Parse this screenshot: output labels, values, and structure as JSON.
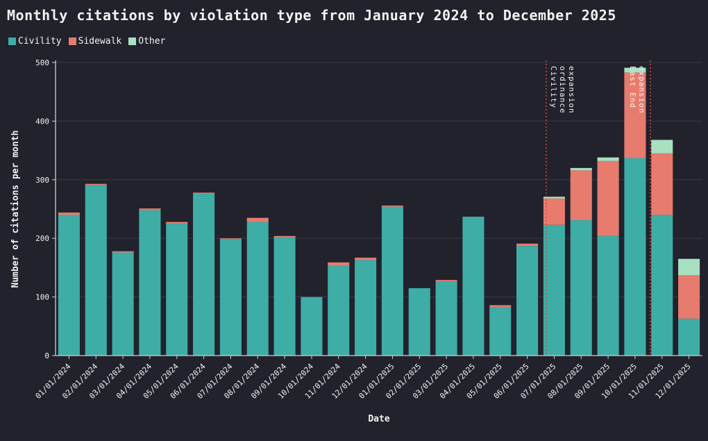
{
  "page": {
    "background": "#21222c"
  },
  "chart_data": {
    "type": "bar",
    "stacked": true,
    "title": "Monthly citations by violation type from January 2024 to December 2025",
    "xlabel": "Date",
    "ylabel": "Number of citations per month",
    "ylim": [
      0,
      500
    ],
    "yticks": [
      0,
      100,
      200,
      300,
      400,
      500
    ],
    "grid": true,
    "legend_position": "top-left",
    "colors": {
      "grid": "#3a3b45",
      "axis": "#cfcfcf",
      "text": "#f2f2f2",
      "annotation_line": "#d6443a"
    },
    "categories": [
      "01/01/2024",
      "02/01/2024",
      "03/01/2024",
      "04/01/2024",
      "05/01/2024",
      "06/01/2024",
      "07/01/2024",
      "08/01/2024",
      "09/01/2024",
      "10/01/2024",
      "11/01/2024",
      "12/01/2024",
      "01/01/2025",
      "02/01/2025",
      "03/01/2025",
      "04/01/2025",
      "05/01/2025",
      "06/01/2025",
      "07/01/2025",
      "08/01/2025",
      "09/01/2025",
      "10/01/2025",
      "11/01/2025",
      "12/01/2025"
    ],
    "series": [
      {
        "name": "Civility",
        "color": "#3dada6",
        "values": [
          240,
          291,
          176,
          248,
          225,
          276,
          199,
          228,
          202,
          100,
          153,
          163,
          254,
          115,
          126,
          237,
          83,
          187,
          223,
          231,
          204,
          337,
          240,
          63
        ]
      },
      {
        "name": "Sidewalk",
        "color": "#e77b6e",
        "values": [
          4,
          2,
          2,
          3,
          3,
          2,
          1,
          7,
          2,
          0,
          6,
          4,
          2,
          0,
          3,
          0,
          3,
          4,
          45,
          85,
          128,
          146,
          105,
          74
        ]
      },
      {
        "name": "Other",
        "color": "#a8e0c1",
        "values": [
          0,
          0,
          0,
          0,
          0,
          0,
          0,
          0,
          0,
          0,
          0,
          0,
          0,
          0,
          0,
          0,
          0,
          0,
          3,
          4,
          6,
          8,
          23,
          28
        ]
      }
    ],
    "annotations": [
      {
        "label": "Civility ordinance expansion",
        "lines": [
          "Civility",
          "ordinance",
          "expansion"
        ],
        "x_index": 17.7,
        "text_offsets": [
          7,
          20,
          33
        ],
        "color": "#d6443a"
      },
      {
        "label": "East End expansion",
        "lines": [
          "East End",
          "expansion"
        ],
        "x_index": 21.57,
        "text_offsets": [
          -29,
          -16
        ],
        "color": "#d6443a"
      }
    ]
  }
}
